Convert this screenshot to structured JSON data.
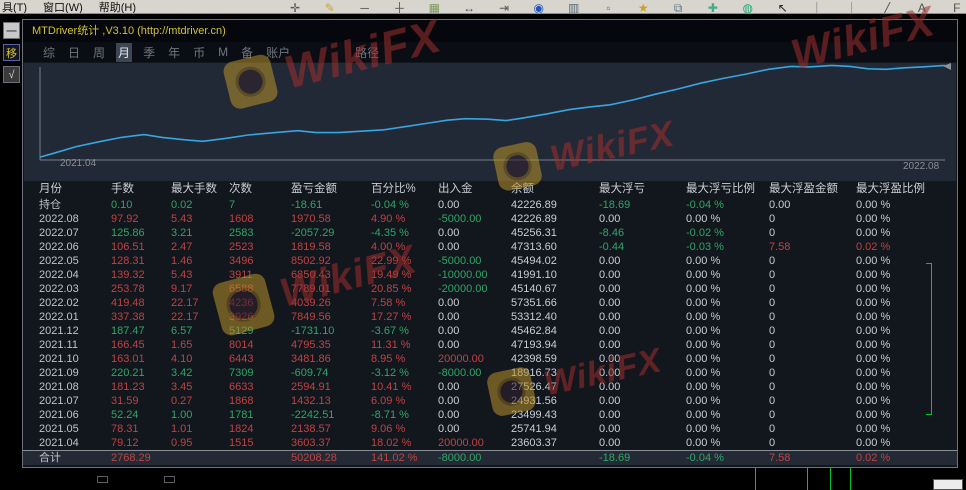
{
  "menu": {
    "items": [
      "具(T)",
      "窗口(W)",
      "帮助(H)"
    ]
  },
  "toolbar": {
    "icons": [
      {
        "name": "crosshair-icon",
        "glyph": "✛",
        "color": "#555555"
      },
      {
        "name": "pencil-icon",
        "glyph": "✎",
        "color": "#caa53a"
      },
      {
        "name": "hline-tool-icon",
        "glyph": "─",
        "color": "#555555"
      },
      {
        "name": "vline-tool-icon",
        "glyph": "┼",
        "color": "#555555"
      },
      {
        "name": "grid-icon",
        "glyph": "▦",
        "color": "#7a9a5a"
      },
      {
        "name": "expand-horizontal-icon",
        "glyph": "↔",
        "color": "#555555"
      },
      {
        "name": "shift-chart-icon",
        "glyph": "⇥",
        "color": "#555555"
      },
      {
        "name": "globe-icon",
        "glyph": "◉",
        "color": "#2255bb"
      },
      {
        "name": "chart-template-icon",
        "glyph": "▥",
        "color": "#556677"
      },
      {
        "name": "new-window-icon",
        "glyph": "▫",
        "color": "#667788"
      },
      {
        "name": "star-icon",
        "glyph": "★",
        "color": "#c9a227"
      },
      {
        "name": "window-tile-icon",
        "glyph": "⧉",
        "color": "#667788"
      },
      {
        "name": "add-icon",
        "glyph": "✚",
        "color": "#44aa88"
      },
      {
        "name": "record-icon",
        "glyph": "◍",
        "color": "#22aa77"
      },
      {
        "name": "cursor-icon",
        "glyph": "↖",
        "color": "#222222"
      },
      {
        "name": "separator-bar",
        "glyph": "│",
        "color": "#999999"
      },
      {
        "name": "separator-bar",
        "glyph": "│",
        "color": "#999999"
      },
      {
        "name": "trendline-icon",
        "glyph": "╱",
        "color": "#555555"
      },
      {
        "name": "text-tool-icon",
        "glyph": "A",
        "color": "#555555"
      },
      {
        "name": "fibonacci-icon",
        "glyph": "F",
        "color": "#555555"
      }
    ]
  },
  "side_buttons": {
    "collapse": "一",
    "move": "移",
    "check": "√"
  },
  "window": {
    "title": "MTDriver统计 ,V3.10 (http://mtdriver.cn)",
    "tabs": [
      {
        "label": "综",
        "selected": false
      },
      {
        "label": "日",
        "selected": false
      },
      {
        "label": "周",
        "selected": false
      },
      {
        "label": "月",
        "selected": true
      },
      {
        "label": "季",
        "selected": false
      },
      {
        "label": "年",
        "selected": false
      },
      {
        "label": "币",
        "selected": false
      },
      {
        "label": "M",
        "selected": false
      },
      {
        "label": "备",
        "selected": false
      },
      {
        "label": "账户",
        "selected": false
      },
      {
        "label": "路径",
        "selected": false,
        "path_tab": true
      }
    ]
  },
  "chart_data": {
    "type": "line",
    "title": "",
    "xlabel": "",
    "ylabel": "",
    "x_start_label": "2021.04",
    "x_end_label": "2022.08",
    "y_axis": "unlabeled cumulative equity curve (normalized 0-1)",
    "line_color": "#36a6e0",
    "grid": false,
    "legend": "none",
    "series": [
      {
        "name": "equity-curve",
        "points": [
          [
            0.0,
            0.03
          ],
          [
            0.015,
            0.07
          ],
          [
            0.04,
            0.14
          ],
          [
            0.065,
            0.19
          ],
          [
            0.09,
            0.235
          ],
          [
            0.115,
            0.265
          ],
          [
            0.135,
            0.235
          ],
          [
            0.16,
            0.21
          ],
          [
            0.18,
            0.195
          ],
          [
            0.205,
            0.225
          ],
          [
            0.23,
            0.26
          ],
          [
            0.265,
            0.29
          ],
          [
            0.285,
            0.305
          ],
          [
            0.305,
            0.285
          ],
          [
            0.33,
            0.285
          ],
          [
            0.355,
            0.3
          ],
          [
            0.38,
            0.315
          ],
          [
            0.405,
            0.35
          ],
          [
            0.43,
            0.385
          ],
          [
            0.45,
            0.415
          ],
          [
            0.47,
            0.43
          ],
          [
            0.495,
            0.425
          ],
          [
            0.515,
            0.41
          ],
          [
            0.535,
            0.44
          ],
          [
            0.56,
            0.48
          ],
          [
            0.585,
            0.525
          ],
          [
            0.61,
            0.555
          ],
          [
            0.63,
            0.575
          ],
          [
            0.655,
            0.625
          ],
          [
            0.68,
            0.685
          ],
          [
            0.705,
            0.74
          ],
          [
            0.73,
            0.8
          ],
          [
            0.755,
            0.85
          ],
          [
            0.78,
            0.895
          ],
          [
            0.805,
            0.945
          ],
          [
            0.83,
            0.975
          ],
          [
            0.85,
            0.97
          ],
          [
            0.875,
            0.985
          ],
          [
            0.895,
            0.975
          ],
          [
            0.915,
            0.95
          ],
          [
            0.935,
            0.945
          ],
          [
            0.955,
            0.96
          ],
          [
            0.975,
            0.97
          ],
          [
            1.0,
            0.985
          ]
        ]
      }
    ]
  },
  "colors": {
    "r": "#c04342",
    "g": "#2fa666",
    "w": "#c9ced5",
    "m": "#bfc4ca"
  },
  "table": {
    "headers": [
      "月份",
      "手数",
      "最大手数",
      "次数",
      "盈亏金额",
      "百分比%",
      "出入金",
      "余额",
      "最大浮亏",
      "最大浮亏比例",
      "最大浮盈金额",
      "最大浮盈比例"
    ],
    "rows": [
      [
        "持仓|m",
        "0.10|g",
        "0.02|g",
        "7|g",
        "-18.61|g",
        "-0.04 %|g",
        "0.00|w",
        "42226.89|w",
        "-18.69|g",
        "-0.04 %|g",
        "0.00|w",
        "0.00 %|w"
      ],
      [
        "2022.08|m",
        "97.92|r",
        "5.43|r",
        "1608|r",
        "1970.58|r",
        "4.90 %|r",
        "-5000.00|g",
        "42226.89|w",
        "0.00|w",
        "0.00 %|w",
        "0|w",
        "0.00 %|w"
      ],
      [
        "2022.07|m",
        "125.86|g",
        "3.21|g",
        "2583|g",
        "-2057.29|g",
        "-4.35 %|g",
        "0.00|w",
        "45256.31|w",
        "-8.46|g",
        "-0.02 %|g",
        "0|w",
        "0.00 %|w"
      ],
      [
        "2022.06|m",
        "106.51|r",
        "2.47|r",
        "2523|r",
        "1819.58|r",
        "4.00 %|r",
        "0.00|w",
        "47313.60|w",
        "-0.44|g",
        "-0.03 %|g",
        "7.58|r",
        "0.02 %|r"
      ],
      [
        "2022.05|m",
        "128.31|r",
        "1.46|r",
        "3496|r",
        "8502.92|r",
        "22.99 %|r",
        "-5000.00|g",
        "45494.02|w",
        "0.00|w",
        "0.00 %|w",
        "0|w",
        "0.00 %|w"
      ],
      [
        "2022.04|m",
        "139.32|r",
        "5.43|r",
        "3911|r",
        "6850.43|r",
        "19.49 %|r",
        "-10000.00|g",
        "41991.10|w",
        "0.00|w",
        "0.00 %|w",
        "0|w",
        "0.00 %|w"
      ],
      [
        "2022.03|m",
        "253.78|r",
        "9.17|r",
        "6588|r",
        "7789.01|r",
        "20.85 %|r",
        "-20000.00|g",
        "45140.67|w",
        "0.00|w",
        "0.00 %|w",
        "0|w",
        "0.00 %|w"
      ],
      [
        "2022.02|m",
        "419.48|r",
        "22.17|r",
        "4236|r",
        "4039.26|r",
        "7.58 %|r",
        "0.00|w",
        "57351.66|w",
        "0.00|w",
        "0.00 %|w",
        "0|w",
        "0.00 %|w"
      ],
      [
        "2022.01|m",
        "337.38|r",
        "22.17|r",
        "3926|r",
        "7849.56|r",
        "17.27 %|r",
        "0.00|w",
        "53312.40|w",
        "0.00|w",
        "0.00 %|w",
        "0|w",
        "0.00 %|w"
      ],
      [
        "2021.12|m",
        "187.47|g",
        "6.57|g",
        "5129|g",
        "-1731.10|g",
        "-3.67 %|g",
        "0.00|w",
        "45462.84|w",
        "0.00|w",
        "0.00 %|w",
        "0|w",
        "0.00 %|w"
      ],
      [
        "2021.11|m",
        "166.45|r",
        "1.65|r",
        "8014|r",
        "4795.35|r",
        "11.31 %|r",
        "0.00|w",
        "47193.94|w",
        "0.00|w",
        "0.00 %|w",
        "0|w",
        "0.00 %|w"
      ],
      [
        "2021.10|m",
        "163.01|r",
        "4.10|r",
        "6443|r",
        "3481.86|r",
        "8.95 %|r",
        "20000.00|r",
        "42398.59|w",
        "0.00|w",
        "0.00 %|w",
        "0|w",
        "0.00 %|w"
      ],
      [
        "2021.09|m",
        "220.21|g",
        "3.42|g",
        "7309|g",
        "-609.74|g",
        "-3.12 %|g",
        "-8000.00|g",
        "18916.73|w",
        "0.00|w",
        "0.00 %|w",
        "0|w",
        "0.00 %|w"
      ],
      [
        "2021.08|m",
        "181.23|r",
        "3.45|r",
        "6633|r",
        "2594.91|r",
        "10.41 %|r",
        "0.00|w",
        "27526.47|w",
        "0.00|w",
        "0.00 %|w",
        "0|w",
        "0.00 %|w"
      ],
      [
        "2021.07|m",
        "31.59|r",
        "0.27|r",
        "1868|r",
        "1432.13|r",
        "6.09 %|r",
        "0.00|w",
        "24931.56|w",
        "0.00|w",
        "0.00 %|w",
        "0|w",
        "0.00 %|w"
      ],
      [
        "2021.06|m",
        "52.24|g",
        "1.00|g",
        "1781|g",
        "-2242.51|g",
        "-8.71 %|g",
        "0.00|w",
        "23499.43|w",
        "0.00|w",
        "0.00 %|w",
        "0|w",
        "0.00 %|w"
      ],
      [
        "2021.05|m",
        "78.31|r",
        "1.01|r",
        "1824|r",
        "2138.57|r",
        "9.06 %|r",
        "0.00|w",
        "25741.94|w",
        "0.00|w",
        "0.00 %|w",
        "0|w",
        "0.00 %|w"
      ],
      [
        "2021.04|m",
        "79.12|r",
        "0.95|r",
        "1515|r",
        "3603.37|r",
        "18.02 %|r",
        "20000.00|r",
        "23603.37|w",
        "0.00|w",
        "0.00 %|w",
        "0|w",
        "0.00 %|w"
      ]
    ],
    "total_row": [
      "合计|m",
      "2768.29|r",
      "|w",
      "|w",
      "50208.28|r",
      "141.02 %|r",
      "-8000.00|g",
      "|w",
      "-18.69|g",
      "-0.04 %|g",
      "7.58|r",
      "0.02 %|r"
    ]
  },
  "watermark": {
    "text": "WikiFX"
  }
}
